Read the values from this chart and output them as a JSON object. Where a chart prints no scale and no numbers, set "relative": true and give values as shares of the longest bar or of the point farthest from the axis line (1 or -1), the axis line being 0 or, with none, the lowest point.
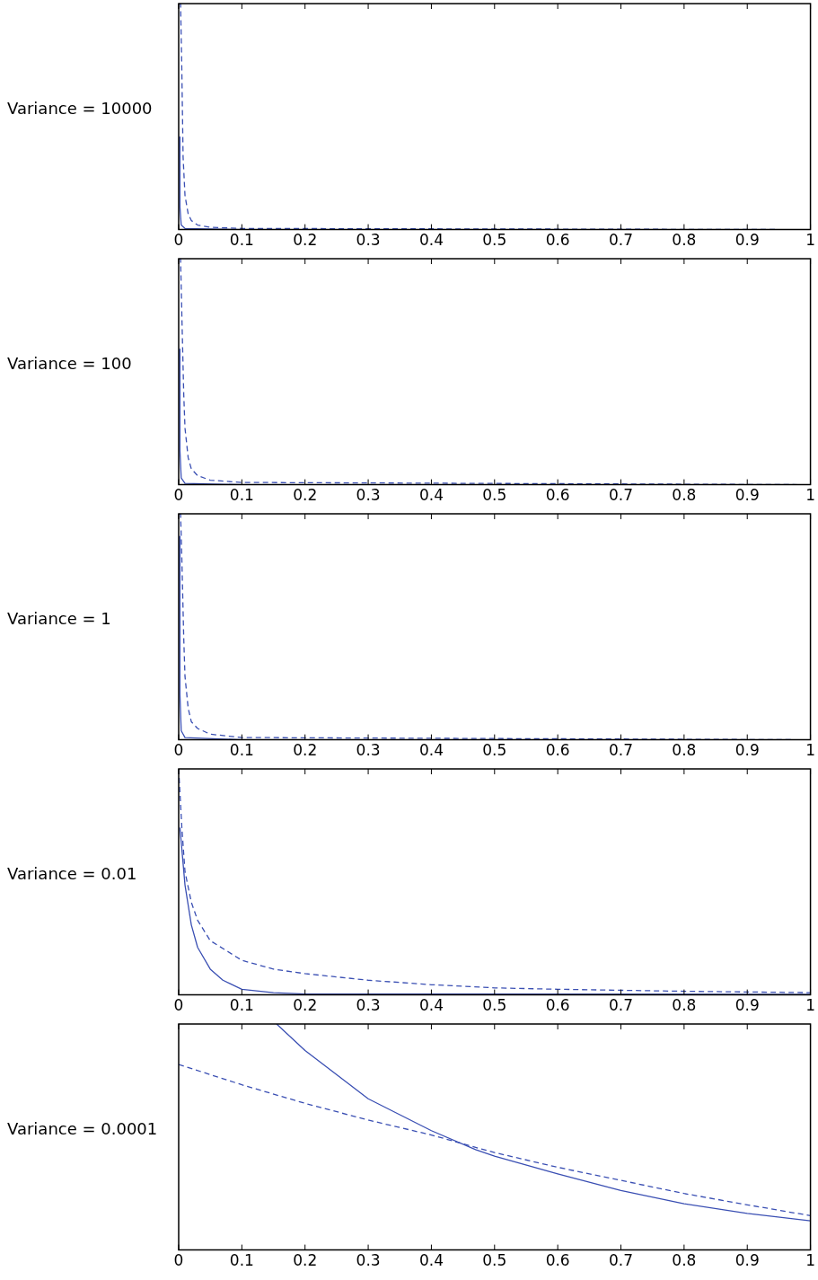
{
  "chart_data": [
    {
      "type": "line",
      "ylabel": "Variance = 10000",
      "relative": true,
      "xlim": [
        0,
        1
      ],
      "xticks": [
        0,
        0.1,
        0.2,
        0.3,
        0.4,
        0.5,
        0.6,
        0.7,
        0.8,
        0.9,
        1
      ],
      "grid": false,
      "legend": false,
      "marker": "none",
      "series": [
        {
          "color": "#3a4fb3",
          "line_style": "solid",
          "x": [
            0.0015,
            0.002,
            0.004,
            0.01,
            0.1,
            1
          ],
          "values": [
            0.41,
            0.1,
            0.02,
            0.005,
            0,
            0
          ]
        },
        {
          "color": "#3a4fb3",
          "line_style": "dashed",
          "x": [
            0.001,
            0.003,
            0.005,
            0.007,
            0.01,
            0.015,
            0.02,
            0.03,
            0.05,
            0.1,
            1
          ],
          "values": [
            1,
            1,
            0.7,
            0.32,
            0.15,
            0.07,
            0.04,
            0.02,
            0.01,
            0.005,
            0
          ]
        }
      ]
    },
    {
      "type": "line",
      "ylabel": "Variance = 100",
      "relative": true,
      "xlim": [
        0,
        1
      ],
      "xticks": [
        0,
        0.1,
        0.2,
        0.3,
        0.4,
        0.5,
        0.6,
        0.7,
        0.8,
        0.9,
        1
      ],
      "grid": false,
      "legend": false,
      "marker": "none",
      "series": [
        {
          "color": "#3a4fb3",
          "line_style": "solid",
          "x": [
            0.0015,
            0.002,
            0.004,
            0.01,
            0.1,
            1
          ],
          "values": [
            0.6,
            0.15,
            0.03,
            0.006,
            0,
            0
          ]
        },
        {
          "color": "#3a4fb3",
          "line_style": "dashed",
          "x": [
            0.001,
            0.003,
            0.005,
            0.008,
            0.01,
            0.015,
            0.02,
            0.03,
            0.05,
            0.1,
            1
          ],
          "values": [
            1,
            1,
            0.75,
            0.4,
            0.25,
            0.12,
            0.07,
            0.04,
            0.02,
            0.01,
            0
          ]
        }
      ]
    },
    {
      "type": "line",
      "ylabel": "Variance = 1",
      "relative": true,
      "xlim": [
        0,
        1
      ],
      "xticks": [
        0,
        0.1,
        0.2,
        0.3,
        0.4,
        0.5,
        0.6,
        0.7,
        0.8,
        0.9,
        1
      ],
      "grid": false,
      "legend": false,
      "marker": "none",
      "series": [
        {
          "color": "#3a4fb3",
          "line_style": "solid",
          "x": [
            0.0015,
            0.002,
            0.004,
            0.01,
            0.1,
            1
          ],
          "values": [
            0.9,
            0.2,
            0.04,
            0.01,
            0,
            0
          ]
        },
        {
          "color": "#3a4fb3",
          "line_style": "dashed",
          "x": [
            0.001,
            0.003,
            0.005,
            0.008,
            0.01,
            0.015,
            0.02,
            0.03,
            0.05,
            0.1,
            1
          ],
          "values": [
            1,
            1,
            0.8,
            0.45,
            0.28,
            0.14,
            0.08,
            0.05,
            0.025,
            0.01,
            0
          ]
        }
      ]
    },
    {
      "type": "line",
      "ylabel": "Variance = 0.01",
      "relative": true,
      "xlim": [
        0,
        1
      ],
      "xticks": [
        0,
        0.1,
        0.2,
        0.3,
        0.4,
        0.5,
        0.6,
        0.7,
        0.8,
        0.9,
        1
      ],
      "grid": false,
      "legend": false,
      "marker": "none",
      "series": [
        {
          "color": "#3a4fb3",
          "line_style": "solid",
          "x": [
            0.002,
            0.01,
            0.02,
            0.03,
            0.05,
            0.07,
            0.1,
            0.15,
            0.2,
            1
          ],
          "values": [
            0.74,
            0.486,
            0.31,
            0.21,
            0.114,
            0.065,
            0.025,
            0.01,
            0.004,
            0.002
          ]
        },
        {
          "color": "#3a4fb3",
          "line_style": "dashed",
          "x": [
            0,
            0.005,
            0.01,
            0.02,
            0.03,
            0.05,
            0.1,
            0.15,
            0.2,
            0.3,
            0.4,
            0.5,
            0.6,
            0.8,
            1
          ],
          "values": [
            1,
            0.74,
            0.545,
            0.41,
            0.33,
            0.24,
            0.153,
            0.114,
            0.094,
            0.065,
            0.045,
            0.031,
            0.025,
            0.016,
            0.01
          ]
        }
      ]
    },
    {
      "type": "line",
      "ylabel": "Variance = 0.0001",
      "relative": true,
      "xlim": [
        0,
        1
      ],
      "xticks": [
        0,
        0.1,
        0.2,
        0.3,
        0.4,
        0.5,
        0.6,
        0.7,
        0.8,
        0.9,
        1
      ],
      "grid": false,
      "legend": false,
      "marker": "none",
      "series": [
        {
          "color": "#3a4fb3",
          "line_style": "solid",
          "x": [
            0.155,
            0.2,
            0.3,
            0.4,
            0.47,
            0.5,
            0.6,
            0.7,
            0.8,
            0.9,
            1
          ],
          "values": [
            1,
            0.883,
            0.669,
            0.528,
            0.444,
            0.415,
            0.337,
            0.263,
            0.205,
            0.162,
            0.129
          ]
        },
        {
          "color": "#3a4fb3",
          "line_style": "dashed",
          "x": [
            0,
            0.1,
            0.2,
            0.3,
            0.4,
            0.47,
            0.5,
            0.6,
            0.7,
            0.8,
            0.9,
            1
          ],
          "values": [
            0.821,
            0.731,
            0.649,
            0.575,
            0.509,
            0.454,
            0.431,
            0.366,
            0.308,
            0.25,
            0.2,
            0.152
          ]
        }
      ]
    }
  ]
}
